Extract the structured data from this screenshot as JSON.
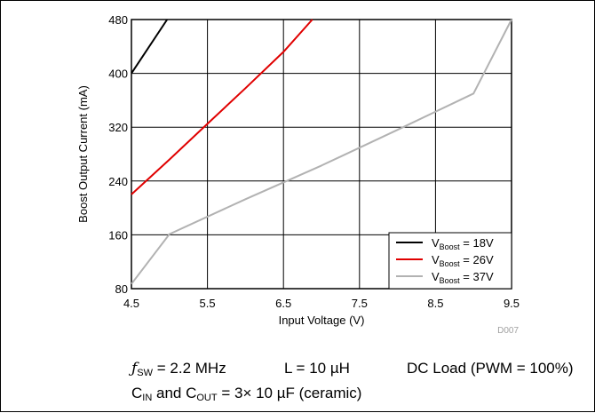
{
  "chart_data": {
    "type": "line",
    "xlabel": "Input Voltage (V)",
    "ylabel": "Boost Output Current (mA)",
    "xlim": [
      4.5,
      9.5
    ],
    "ylim": [
      80,
      480
    ],
    "xticks": [
      4.5,
      5.5,
      6.5,
      7.5,
      8.5,
      9.5
    ],
    "yticks": [
      80,
      160,
      240,
      320,
      400,
      480
    ],
    "xtick_labels": [
      "4.5",
      "5.5",
      "6.5",
      "7.5",
      "8.5",
      "9.5"
    ],
    "ytick_labels": [
      "80",
      "160",
      "240",
      "320",
      "400",
      "480"
    ],
    "grid": true,
    "legend_position": "bottom-right",
    "figure_id": "D007",
    "series": [
      {
        "name": "V",
        "sub": "Boost",
        "suffix": " = 18V",
        "color": "#000000",
        "x": [
          4.5,
          4.97
        ],
        "y": [
          400,
          480
        ]
      },
      {
        "name": "V",
        "sub": "Boost",
        "suffix": " = 26V",
        "color": "#e00000",
        "x": [
          4.5,
          5.0,
          5.5,
          6.0,
          6.5,
          6.88
        ],
        "y": [
          220,
          272,
          325,
          378,
          432,
          480
        ]
      },
      {
        "name": "V",
        "sub": "Boost",
        "suffix": " = 37V",
        "color": "#b2b2b2",
        "x": [
          4.5,
          5.0,
          6.0,
          7.0,
          8.0,
          9.0,
          9.5
        ],
        "y": [
          87,
          161,
          213,
          263,
          316,
          370,
          480
        ]
      }
    ]
  },
  "conditions": {
    "fsw_symbol": "ƒ",
    "fsw_sub": "SW",
    "fsw_value": " = 2.2 MHz",
    "inductor": "L = 10 µH",
    "load": "DC Load (PWM = 100%)",
    "cin": "C",
    "cin_sub": "IN",
    "and": " and C",
    "cout_sub": "OUT",
    "cap_value": " = 3× 10 µF (ceramic)"
  }
}
